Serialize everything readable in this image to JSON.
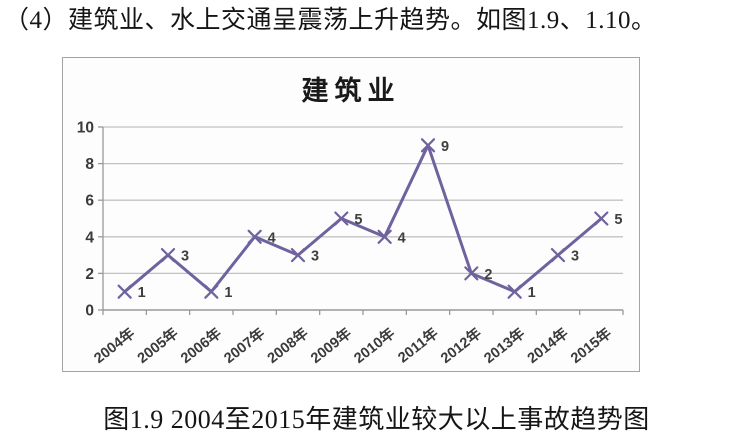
{
  "page": {
    "intro_text": "（4）建筑业、水上交通呈震荡上升趋势。如图1.9、1.10。",
    "figure_caption": "图1.9 2004至2015年建筑业较大以上事故趋势图"
  },
  "chart_data": {
    "type": "line",
    "title": "建筑业",
    "categories": [
      "2004年",
      "2005年",
      "2006年",
      "2007年",
      "2008年",
      "2009年",
      "2010年",
      "2011年",
      "2012年",
      "2013年",
      "2014年",
      "2015年"
    ],
    "values": [
      1,
      3,
      1,
      4,
      3,
      5,
      4,
      9,
      2,
      1,
      3,
      5
    ],
    "xlabel": "",
    "ylabel": "",
    "ylim": [
      0,
      10
    ],
    "yticks": [
      0,
      2,
      4,
      6,
      8,
      10
    ],
    "grid": true,
    "legend_position": "none",
    "marker": "x",
    "data_labels": true,
    "x_label_rotation_deg": -38,
    "colors": {
      "line": "#6f629f",
      "gridline": "#c2c2c2",
      "axis": "#9a9a9a",
      "tick_label": "#3a3a3a",
      "data_label": "#3f3f3f",
      "title": "#1a1a1a",
      "chart_border": "#a3a3a3"
    }
  }
}
